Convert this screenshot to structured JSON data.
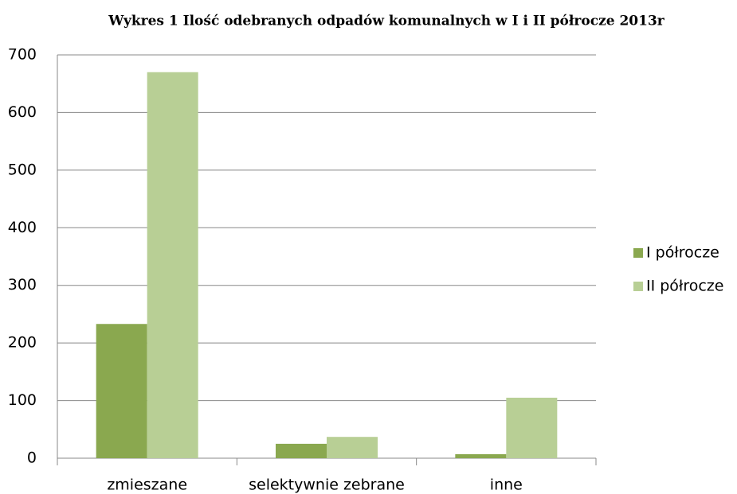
{
  "chart_data": {
    "type": "bar",
    "title": "Wykres 1 Ilość odebranych odpadów komunalnych w I i II półrocze 2013r",
    "categories": [
      "zmieszane",
      "selektywnie zebrane",
      "inne"
    ],
    "series": [
      {
        "name": "I półrocze",
        "color": "#8aa84f",
        "values": [
          233,
          25,
          7
        ]
      },
      {
        "name": "II półrocze",
        "color": "#b8cf95",
        "values": [
          670,
          37,
          105
        ]
      }
    ],
    "ylim": [
      0,
      700
    ],
    "yticks": [
      0,
      100,
      200,
      300,
      400,
      500,
      600,
      700
    ],
    "grid": true,
    "legend": "right"
  }
}
